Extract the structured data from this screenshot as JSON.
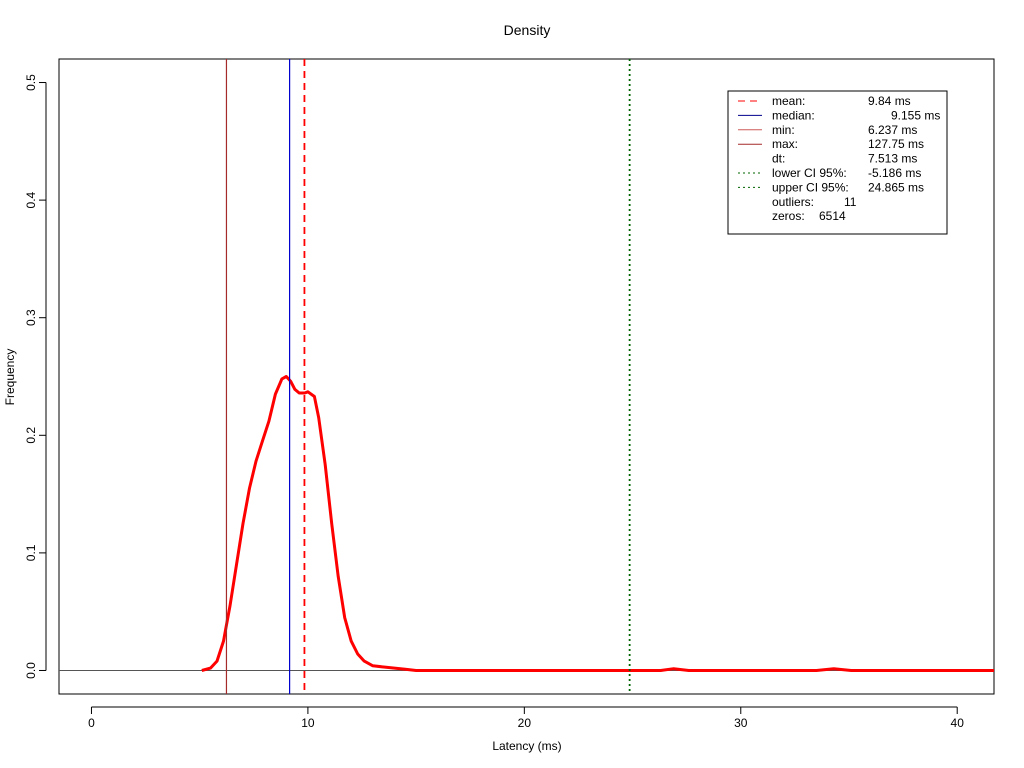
{
  "chart_data": {
    "type": "line",
    "title": "Density",
    "xlabel": "Latency (ms)",
    "ylabel": "Frequency",
    "xlim": [
      -1.5,
      41.7
    ],
    "ylim": [
      -0.02,
      0.52
    ],
    "x_ticks": [
      0,
      10,
      20,
      30,
      40
    ],
    "y_ticks": [
      0.0,
      0.1,
      0.2,
      0.3,
      0.4,
      0.5
    ],
    "x_tick_labels": [
      "0",
      "10",
      "20",
      "30",
      "40"
    ],
    "y_tick_labels": [
      "0.0",
      "0.1",
      "0.2",
      "0.3",
      "0.4",
      "0.5"
    ],
    "series": [
      {
        "color": "#ff0000",
        "points": [
          [
            5.1,
            0.0
          ],
          [
            5.5,
            0.002
          ],
          [
            5.8,
            0.008
          ],
          [
            6.1,
            0.025
          ],
          [
            6.4,
            0.055
          ],
          [
            6.7,
            0.09
          ],
          [
            7.0,
            0.125
          ],
          [
            7.3,
            0.155
          ],
          [
            7.6,
            0.178
          ],
          [
            7.9,
            0.195
          ],
          [
            8.2,
            0.212
          ],
          [
            8.5,
            0.235
          ],
          [
            8.8,
            0.248
          ],
          [
            9.0,
            0.25
          ],
          [
            9.2,
            0.246
          ],
          [
            9.4,
            0.239
          ],
          [
            9.6,
            0.236
          ],
          [
            9.85,
            0.236
          ],
          [
            10.0,
            0.237
          ],
          [
            10.3,
            0.233
          ],
          [
            10.5,
            0.215
          ],
          [
            10.8,
            0.175
          ],
          [
            11.1,
            0.125
          ],
          [
            11.4,
            0.08
          ],
          [
            11.7,
            0.045
          ],
          [
            12.0,
            0.025
          ],
          [
            12.3,
            0.014
          ],
          [
            12.6,
            0.008
          ],
          [
            13.0,
            0.004
          ],
          [
            13.5,
            0.003
          ],
          [
            14.0,
            0.002
          ],
          [
            14.5,
            0.001
          ],
          [
            15.0,
            0.0
          ],
          [
            20.0,
            0.0
          ],
          [
            25.5,
            0.0
          ],
          [
            26.3,
            0.0
          ],
          [
            26.9,
            0.0015
          ],
          [
            27.6,
            0.0
          ],
          [
            33.5,
            0.0
          ],
          [
            34.3,
            0.0015
          ],
          [
            35.1,
            0.0
          ],
          [
            41.7,
            0.0
          ]
        ]
      }
    ],
    "vlines": [
      {
        "name": "min",
        "x": 6.237,
        "color": "#a52a2a",
        "style": "solid"
      },
      {
        "name": "median",
        "x": 9.155,
        "color": "#0000cd",
        "style": "solid"
      },
      {
        "name": "mean",
        "x": 9.84,
        "color": "#ff0000",
        "style": "dashed"
      },
      {
        "name": "upper CI",
        "x": 24.865,
        "color": "#006400",
        "style": "dotted"
      }
    ],
    "hline": {
      "y": 0.0,
      "color": "#555555"
    },
    "legend": {
      "position": "top-right",
      "entries": [
        {
          "label": "mean:",
          "value": "9.84 ms",
          "line": "dashed",
          "color": "#ff0000"
        },
        {
          "label": "median:",
          "value": "9.155 ms",
          "line": "solid",
          "color": "#00008b"
        },
        {
          "label": "min:",
          "value": "6.237 ms",
          "line": "solid",
          "color": "#cd5c5c"
        },
        {
          "label": "max:",
          "value": "127.75 ms",
          "line": "solid",
          "color": "#a52a2a"
        },
        {
          "label": "dt:",
          "value": "7.513 ms",
          "line": "none",
          "color": ""
        },
        {
          "label": "lower CI 95%:",
          "value": "-5.186 ms",
          "line": "dotted",
          "color": "#006400"
        },
        {
          "label": "upper CI 95%:",
          "value": "24.865 ms",
          "line": "dotted",
          "color": "#006400"
        },
        {
          "label": "outliers:",
          "value": "11",
          "line": "none",
          "color": ""
        },
        {
          "label": "zeros:",
          "value": "6514",
          "line": "none",
          "color": ""
        }
      ]
    }
  }
}
